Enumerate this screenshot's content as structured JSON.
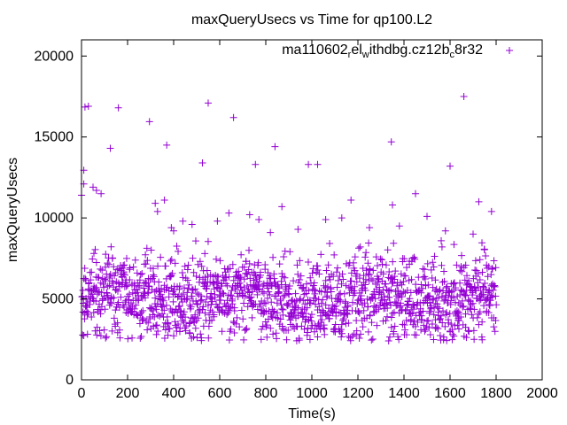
{
  "chart_data": {
    "type": "scatter",
    "title": "maxQueryUsecs vs Time for qp100.L2",
    "xlabel": "Time(s)",
    "ylabel": "maxQueryUsecs",
    "xlim": [
      0,
      2000
    ],
    "ylim": [
      0,
      21000
    ],
    "xticks": [
      "0",
      "200",
      "400",
      "600",
      "800",
      "1000",
      "1200",
      "1400",
      "1600",
      "1800",
      "2000"
    ],
    "yticks": [
      "0",
      "5000",
      "10000",
      "15000",
      "20000"
    ],
    "grid": false,
    "legend": {
      "placement": "top-right",
      "label_parts": [
        {
          "t": "ma110602",
          "sub": false
        },
        {
          "t": "r",
          "sub": true
        },
        {
          "t": "el",
          "sub": false
        },
        {
          "t": "w",
          "sub": true
        },
        {
          "t": "ithdbg.cz12b",
          "sub": false
        },
        {
          "t": "c",
          "sub": true
        },
        {
          "t": "8r32",
          "sub": false
        }
      ]
    },
    "series": [
      {
        "name": "ma110602_rel_withdbg.cz12b_c8r32",
        "color": "#9400d3",
        "marker": "plus",
        "outliers": [
          [
            15,
            16850
          ],
          [
            30,
            16900
          ],
          [
            160,
            16800
          ],
          [
            550,
            17100
          ],
          [
            660,
            16200
          ],
          [
            295,
            15950
          ],
          [
            370,
            14500
          ],
          [
            125,
            14300
          ],
          [
            10,
            12950
          ],
          [
            10,
            12100
          ],
          [
            0,
            11400
          ],
          [
            50,
            11900
          ],
          [
            65,
            11700
          ],
          [
            85,
            11500
          ],
          [
            320,
            10900
          ],
          [
            330,
            10400
          ],
          [
            360,
            11100
          ],
          [
            440,
            9800
          ],
          [
            480,
            9600
          ],
          [
            390,
            9400
          ],
          [
            400,
            9200
          ],
          [
            525,
            13400
          ],
          [
            840,
            14400
          ],
          [
            755,
            13300
          ],
          [
            985,
            13300
          ],
          [
            1025,
            13300
          ],
          [
            1345,
            14700
          ],
          [
            1450,
            11500
          ],
          [
            1600,
            13200
          ],
          [
            1660,
            17500
          ],
          [
            1725,
            11000
          ],
          [
            1780,
            10400
          ],
          [
            1170,
            11100
          ],
          [
            870,
            10700
          ],
          [
            640,
            10300
          ],
          [
            590,
            9800
          ],
          [
            730,
            10200
          ],
          [
            770,
            9900
          ],
          [
            820,
            9100
          ],
          [
            1060,
            9900
          ],
          [
            1130,
            10000
          ],
          [
            1350,
            10800
          ],
          [
            1500,
            10100
          ],
          [
            1580,
            9200
          ],
          [
            1700,
            9000
          ],
          [
            1250,
            9400
          ],
          [
            1380,
            9500
          ],
          [
            940,
            9300
          ]
        ],
        "bulk": {
          "count": 1500,
          "x_range": [
            0,
            1800
          ],
          "y_range": [
            2300,
            8600
          ],
          "y_center": 5000,
          "seed": 7
        }
      }
    ]
  }
}
